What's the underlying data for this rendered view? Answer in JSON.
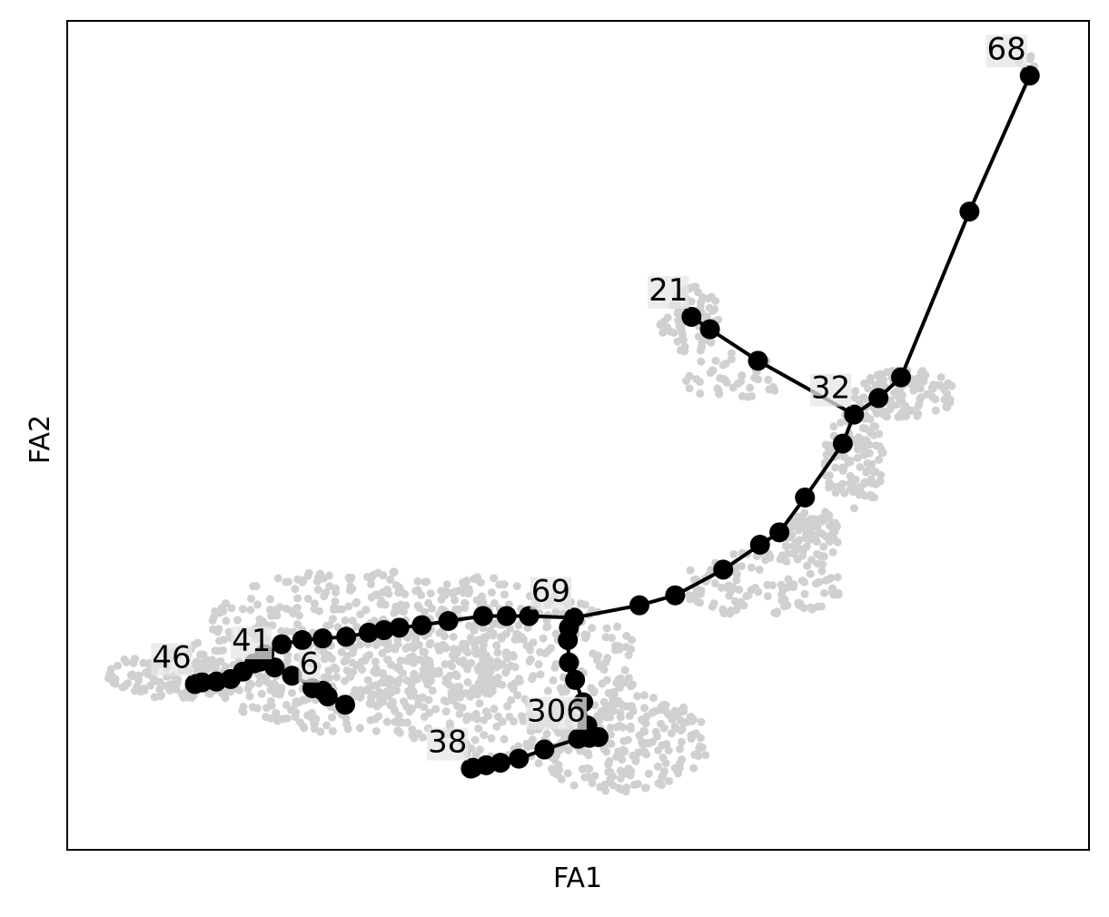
{
  "chart_data": {
    "type": "scatter",
    "title": "",
    "xlabel": "FA1",
    "ylabel": "FA2",
    "xlim": [
      0,
      100
    ],
    "ylim": [
      0,
      100
    ],
    "grid": false,
    "ticks": false,
    "colors": {
      "background_cells": "#d0d0d0",
      "graph": "#000000",
      "label_box": "#e6e6e6"
    },
    "background_cells": {
      "description_color": "#d0d0d0",
      "regions": [
        {
          "cx": 28,
          "cy": 24,
          "rx": 16,
          "ry": 10,
          "n": 520
        },
        {
          "cx": 42,
          "cy": 22,
          "rx": 14,
          "ry": 11,
          "n": 420
        },
        {
          "cx": 54,
          "cy": 13,
          "rx": 9,
          "ry": 6,
          "n": 220
        },
        {
          "cx": 10,
          "cy": 21,
          "rx": 6,
          "ry": 3,
          "n": 120
        },
        {
          "cx": 68,
          "cy": 32,
          "rx": 8,
          "ry": 4,
          "n": 120
        },
        {
          "cx": 73,
          "cy": 38,
          "rx": 3,
          "ry": 3,
          "n": 80
        },
        {
          "cx": 77,
          "cy": 47,
          "rx": 3,
          "ry": 6,
          "n": 110
        },
        {
          "cx": 82,
          "cy": 55,
          "rx": 5,
          "ry": 3,
          "n": 110
        },
        {
          "cx": 61,
          "cy": 64,
          "rx": 3,
          "ry": 4,
          "n": 70
        },
        {
          "cx": 65,
          "cy": 57,
          "rx": 5,
          "ry": 3,
          "n": 40
        },
        {
          "cx": 94,
          "cy": 95,
          "rx": 1,
          "ry": 1,
          "n": 8
        }
      ]
    },
    "nodes": [
      {
        "id": "68",
        "x": 94.2,
        "y": 93.4,
        "label": "68"
      },
      {
        "id": "a1",
        "x": 88.3,
        "y": 77.0
      },
      {
        "id": "a2",
        "x": 81.6,
        "y": 57.0
      },
      {
        "id": "a3",
        "x": 79.4,
        "y": 54.5
      },
      {
        "id": "32",
        "x": 77.0,
        "y": 52.5,
        "label": "32"
      },
      {
        "id": "b1",
        "x": 75.9,
        "y": 49.0
      },
      {
        "id": "b2",
        "x": 72.2,
        "y": 42.5
      },
      {
        "id": "b3",
        "x": 69.7,
        "y": 38.3
      },
      {
        "id": "b4",
        "x": 67.8,
        "y": 36.8
      },
      {
        "id": "b5",
        "x": 64.2,
        "y": 33.8
      },
      {
        "id": "b6",
        "x": 59.5,
        "y": 30.7
      },
      {
        "id": "b7",
        "x": 56.0,
        "y": 29.5
      },
      {
        "id": "21",
        "x": 61.1,
        "y": 64.3,
        "label": "21"
      },
      {
        "id": "c1",
        "x": 62.9,
        "y": 62.8
      },
      {
        "id": "c2",
        "x": 67.6,
        "y": 59.0
      },
      {
        "id": "69",
        "x": 49.6,
        "y": 28.0,
        "label": "69"
      },
      {
        "id": "d1",
        "x": 45.2,
        "y": 28.2
      },
      {
        "id": "d2",
        "x": 43.0,
        "y": 28.2
      },
      {
        "id": "d3",
        "x": 40.7,
        "y": 28.2
      },
      {
        "id": "d4",
        "x": 37.3,
        "y": 27.6
      },
      {
        "id": "d5",
        "x": 34.7,
        "y": 27.1
      },
      {
        "id": "d6",
        "x": 32.5,
        "y": 26.8
      },
      {
        "id": "d7",
        "x": 31.0,
        "y": 26.5
      },
      {
        "id": "d8",
        "x": 29.5,
        "y": 26.2
      },
      {
        "id": "d9",
        "x": 27.3,
        "y": 25.7
      },
      {
        "id": "d10",
        "x": 25.0,
        "y": 25.5
      },
      {
        "id": "d11",
        "x": 23.0,
        "y": 25.3
      },
      {
        "id": "d12",
        "x": 21.0,
        "y": 24.8
      },
      {
        "id": "d13",
        "x": 19.3,
        "y": 23.6
      },
      {
        "id": "d14",
        "x": 18.3,
        "y": 22.5
      },
      {
        "id": "41",
        "x": 20.3,
        "y": 22.0,
        "label": "41"
      },
      {
        "id": "e1",
        "x": 18.9,
        "y": 22.7
      },
      {
        "id": "e2",
        "x": 17.2,
        "y": 21.5
      },
      {
        "id": "e3",
        "x": 16.0,
        "y": 20.6
      },
      {
        "id": "e4",
        "x": 14.6,
        "y": 20.3
      },
      {
        "id": "e5",
        "x": 13.2,
        "y": 20.2
      },
      {
        "id": "46",
        "x": 12.5,
        "y": 20.0,
        "label": "46"
      },
      {
        "id": "f1",
        "x": 22.0,
        "y": 21.0
      },
      {
        "id": "f2",
        "x": 24.0,
        "y": 19.5
      },
      {
        "id": "f3",
        "x": 25.5,
        "y": 18.5
      },
      {
        "id": "f4",
        "x": 27.2,
        "y": 17.5
      },
      {
        "id": "6",
        "x": 25.0,
        "y": 19.2,
        "label": "6"
      },
      {
        "id": "g1",
        "x": 49.1,
        "y": 26.8
      },
      {
        "id": "g2",
        "x": 49.0,
        "y": 25.3
      },
      {
        "id": "g3",
        "x": 49.1,
        "y": 22.6
      },
      {
        "id": "g4",
        "x": 49.7,
        "y": 20.5
      },
      {
        "id": "g5",
        "x": 50.5,
        "y": 17.8
      },
      {
        "id": "g6",
        "x": 50.9,
        "y": 15.0
      },
      {
        "id": "306",
        "x": 51.1,
        "y": 13.5,
        "label": "306"
      },
      {
        "id": "h1",
        "x": 52.0,
        "y": 13.6
      },
      {
        "id": "h2",
        "x": 50.0,
        "y": 13.4
      },
      {
        "id": "h3",
        "x": 46.7,
        "y": 12.1
      },
      {
        "id": "h4",
        "x": 44.2,
        "y": 11.0
      },
      {
        "id": "h5",
        "x": 42.4,
        "y": 10.5
      },
      {
        "id": "h6",
        "x": 41.0,
        "y": 10.2
      },
      {
        "id": "h7",
        "x": 39.7,
        "y": 9.9
      },
      {
        "id": "38",
        "x": 39.5,
        "y": 9.8,
        "label": "38"
      }
    ],
    "edges": [
      [
        "68",
        "a1"
      ],
      [
        "a1",
        "a2"
      ],
      [
        "a2",
        "a3"
      ],
      [
        "a3",
        "32"
      ],
      [
        "32",
        "b1"
      ],
      [
        "b1",
        "b2"
      ],
      [
        "b2",
        "b3"
      ],
      [
        "b3",
        "b4"
      ],
      [
        "b4",
        "b5"
      ],
      [
        "b5",
        "b6"
      ],
      [
        "b6",
        "b7"
      ],
      [
        "b7",
        "69"
      ],
      [
        "21",
        "c1"
      ],
      [
        "c1",
        "c2"
      ],
      [
        "c2",
        "32"
      ],
      [
        "69",
        "d1"
      ],
      [
        "d1",
        "d2"
      ],
      [
        "d2",
        "d3"
      ],
      [
        "d3",
        "d4"
      ],
      [
        "d4",
        "d5"
      ],
      [
        "d5",
        "d6"
      ],
      [
        "d6",
        "d7"
      ],
      [
        "d7",
        "d8"
      ],
      [
        "d8",
        "d9"
      ],
      [
        "d9",
        "d10"
      ],
      [
        "d10",
        "d11"
      ],
      [
        "d11",
        "d12"
      ],
      [
        "d12",
        "d13"
      ],
      [
        "d13",
        "d14"
      ],
      [
        "d14",
        "41"
      ],
      [
        "41",
        "e1"
      ],
      [
        "e1",
        "e2"
      ],
      [
        "e2",
        "e3"
      ],
      [
        "e3",
        "e4"
      ],
      [
        "e4",
        "e5"
      ],
      [
        "e5",
        "46"
      ],
      [
        "41",
        "f1"
      ],
      [
        "f1",
        "6"
      ],
      [
        "6",
        "f2"
      ],
      [
        "f2",
        "f3"
      ],
      [
        "f3",
        "f4"
      ],
      [
        "69",
        "g1"
      ],
      [
        "g1",
        "g2"
      ],
      [
        "g2",
        "g3"
      ],
      [
        "g3",
        "g4"
      ],
      [
        "g4",
        "g5"
      ],
      [
        "g5",
        "g6"
      ],
      [
        "g6",
        "306"
      ],
      [
        "306",
        "h1"
      ],
      [
        "306",
        "h2"
      ],
      [
        "h2",
        "h3"
      ],
      [
        "h3",
        "h4"
      ],
      [
        "h4",
        "h5"
      ],
      [
        "h5",
        "h6"
      ],
      [
        "h6",
        "h7"
      ],
      [
        "h7",
        "38"
      ]
    ],
    "labels": [
      {
        "text": "68",
        "node": "68"
      },
      {
        "text": "21",
        "node": "21"
      },
      {
        "text": "32",
        "node": "32"
      },
      {
        "text": "69",
        "node": "69"
      },
      {
        "text": "41",
        "node": "41"
      },
      {
        "text": "46",
        "node": "46"
      },
      {
        "text": "6",
        "node": "6"
      },
      {
        "text": "306",
        "node": "306"
      },
      {
        "text": "38",
        "node": "38"
      }
    ]
  }
}
